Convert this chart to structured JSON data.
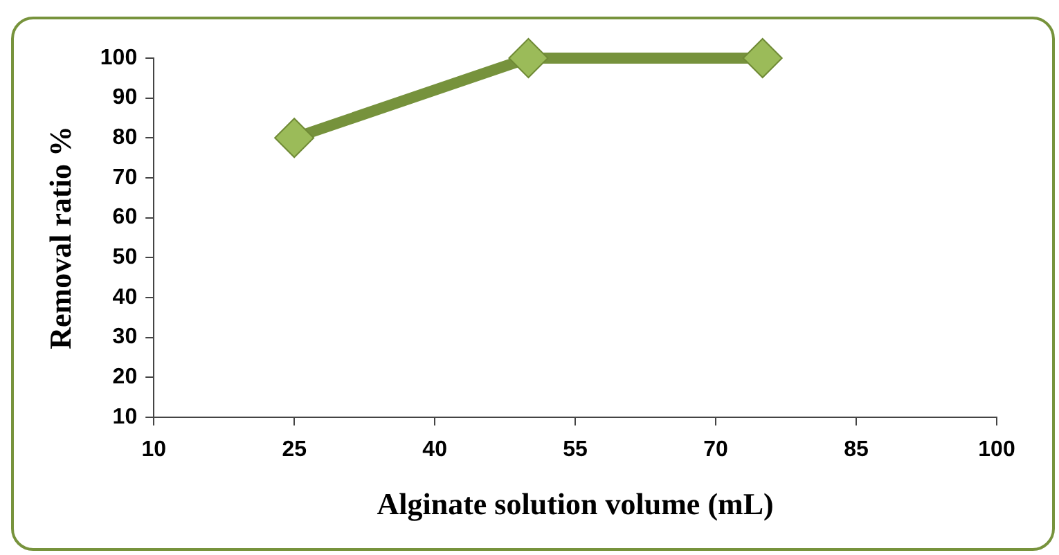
{
  "chart_data": {
    "type": "line",
    "xlabel": "Alginate solution volume (mL)",
    "ylabel": "Removal ratio %",
    "x": [
      25,
      50,
      75
    ],
    "series": [
      {
        "color": "#76923c",
        "values": [
          80,
          100,
          100
        ]
      }
    ],
    "xlim": [
      10,
      100
    ],
    "xticks": [
      10,
      25,
      40,
      55,
      70,
      85,
      100
    ],
    "ylim": [
      10,
      100
    ],
    "yticks": [
      10,
      20,
      30,
      40,
      50,
      60,
      70,
      80,
      90,
      100
    ],
    "grid": false,
    "legend": false,
    "marker": "diamond",
    "line_style": "solid"
  }
}
